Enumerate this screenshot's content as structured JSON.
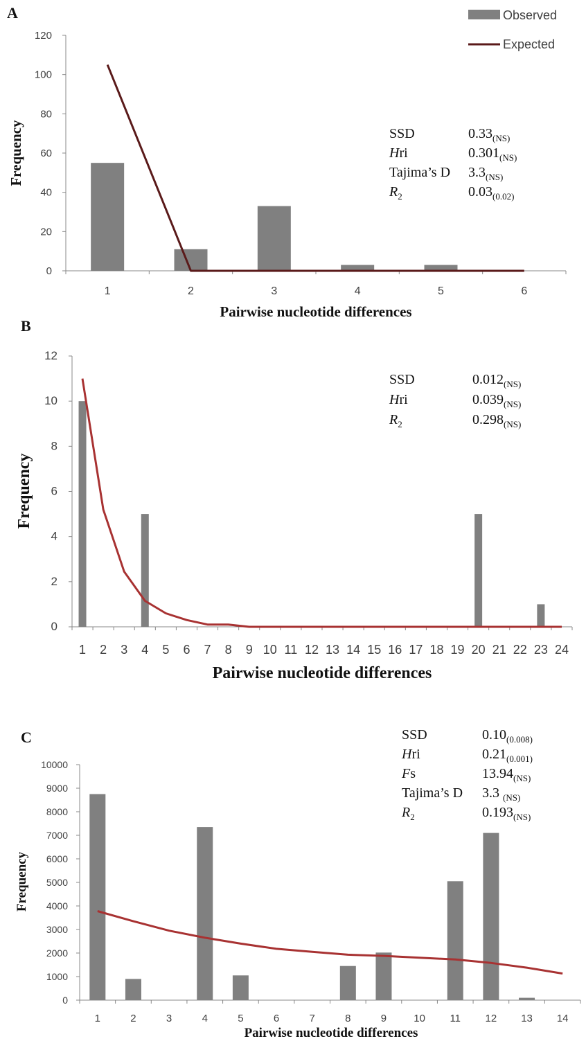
{
  "legend": {
    "observed": "Observed",
    "expected": "Expected"
  },
  "colors": {
    "bar": "#808080",
    "lineA": "#5a1a1a",
    "lineBC": "#a83232",
    "axis": "#888888"
  },
  "chart_data": [
    {
      "panel": "A",
      "type": "bar",
      "xlabel": "Pairwise nucleotide differences",
      "ylabel": "Frequency",
      "categories": [
        "1",
        "2",
        "3",
        "4",
        "5",
        "6"
      ],
      "ylim": [
        0,
        120
      ],
      "yticks": [
        0,
        20,
        40,
        60,
        80,
        100,
        120
      ],
      "series": [
        {
          "name": "Observed",
          "type": "bar",
          "values": [
            55,
            11,
            33,
            3,
            3,
            0
          ]
        },
        {
          "name": "Expected",
          "type": "line",
          "values": [
            105,
            0,
            0,
            0,
            0,
            0
          ]
        }
      ],
      "stats": [
        {
          "label": "SSD",
          "italic": "",
          "sub": "",
          "value": "0.33",
          "p": "(NS)"
        },
        {
          "label": "ri",
          "italic": "H",
          "sub": "",
          "value": "0.301",
          "p": "(NS)"
        },
        {
          "label": "Tajima’s D",
          "italic": "",
          "sub": "",
          "value": "3.3",
          "p": "(NS)"
        },
        {
          "label": "",
          "italic": "R",
          "sub": "2",
          "value": "0.03",
          "p": "(0.02)"
        }
      ]
    },
    {
      "panel": "B",
      "type": "bar",
      "xlabel": "Pairwise nucleotide differences",
      "ylabel": "Frequency",
      "categories": [
        "1",
        "2",
        "3",
        "4",
        "5",
        "6",
        "7",
        "8",
        "9",
        "10",
        "11",
        "12",
        "13",
        "14",
        "15",
        "16",
        "17",
        "18",
        "19",
        "20",
        "21",
        "22",
        "23",
        "24"
      ],
      "ylim": [
        0,
        12
      ],
      "yticks": [
        0,
        2,
        4,
        6,
        8,
        10,
        12
      ],
      "series": [
        {
          "name": "Observed",
          "type": "bar",
          "values": [
            10,
            0,
            0,
            5,
            0,
            0,
            0,
            0,
            0,
            0,
            0,
            0,
            0,
            0,
            0,
            0,
            0,
            0,
            0,
            5,
            0,
            0,
            1,
            0
          ]
        },
        {
          "name": "Expected",
          "type": "line",
          "values": [
            11,
            5.2,
            2.45,
            1.15,
            0.6,
            0.3,
            0.1,
            0.1,
            0,
            0,
            0,
            0,
            0,
            0,
            0,
            0,
            0,
            0,
            0,
            0,
            0,
            0,
            0,
            0
          ]
        }
      ],
      "stats": [
        {
          "label": "SSD",
          "italic": "",
          "sub": "",
          "value": "0.012",
          "p": "(NS)"
        },
        {
          "label": "ri",
          "italic": "H",
          "sub": "",
          "value": "0.039",
          "p": "(NS)"
        },
        {
          "label": "",
          "italic": "R",
          "sub": "2",
          "value": "0.298",
          "p": "(NS)"
        }
      ]
    },
    {
      "panel": "C",
      "type": "bar",
      "xlabel": "Pairwise nucleotide differences",
      "ylabel": "Frequency",
      "categories": [
        "1",
        "2",
        "3",
        "4",
        "5",
        "6",
        "7",
        "8",
        "9",
        "10",
        "11",
        "12",
        "13",
        "14"
      ],
      "ylim": [
        0,
        10000
      ],
      "yticks": [
        0,
        1000,
        2000,
        3000,
        4000,
        5000,
        6000,
        7000,
        8000,
        9000,
        10000
      ],
      "series": [
        {
          "name": "Observed",
          "type": "bar",
          "values": [
            8750,
            900,
            0,
            7350,
            1050,
            0,
            0,
            1450,
            2020,
            0,
            5050,
            7100,
            100,
            0
          ]
        },
        {
          "name": "Expected",
          "type": "line",
          "values": [
            3780,
            3350,
            2950,
            2650,
            2400,
            2180,
            2050,
            1930,
            1880,
            1800,
            1730,
            1580,
            1380,
            1130
          ]
        }
      ],
      "stats": [
        {
          "label": "SSD",
          "italic": "",
          "sub": "",
          "value": "0.10",
          "p": "(0.008)"
        },
        {
          "label": "ri",
          "italic": "H",
          "sub": "",
          "value": "0.21",
          "p": "(0.001)"
        },
        {
          "label": "s",
          "italic": "F",
          "sub": "",
          "value": "13.94",
          "p": "(NS)"
        },
        {
          "label": "Tajima’s D",
          "italic": "",
          "sub": "",
          "value": "3.3 ",
          "p": "(NS)"
        },
        {
          "label": "",
          "italic": "R",
          "sub": "2",
          "value": "0.193",
          "p": "(NS)"
        }
      ]
    }
  ]
}
